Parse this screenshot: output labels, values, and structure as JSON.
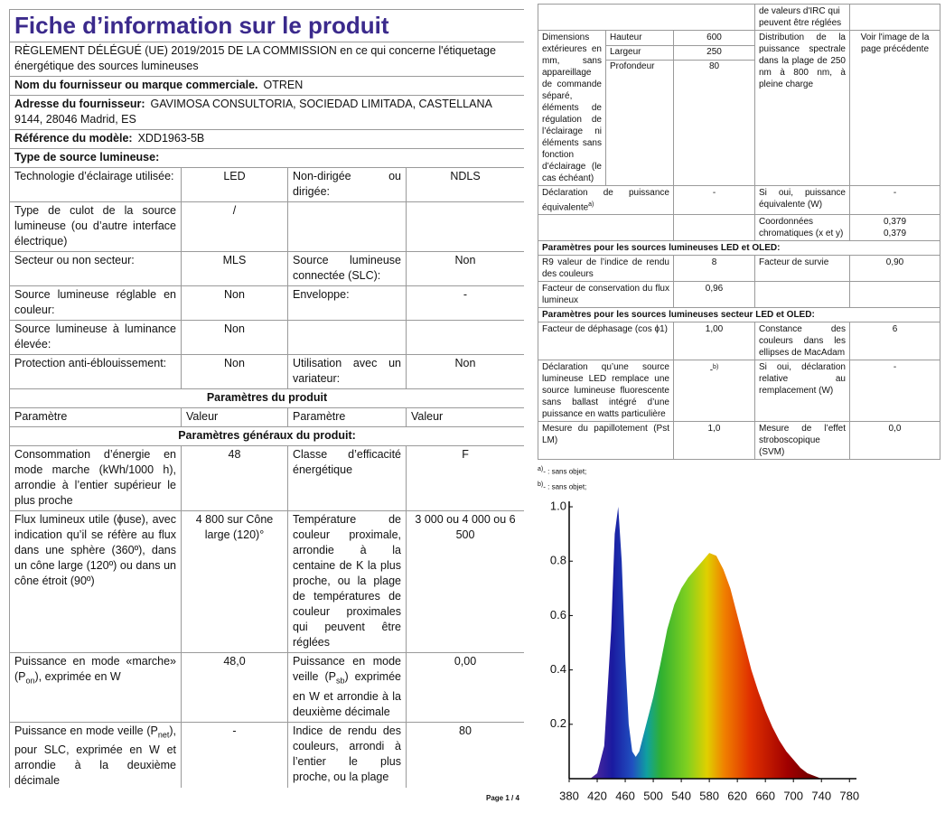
{
  "left": {
    "title": "Fiche d’information sur le produit",
    "regulation": "RÈGLEMENT DÉLÉGUÉ (UE) 2019/2015 DE LA COMMISSION en ce qui concerne l'étiquetage énergétique des sources lumineuses",
    "supplier": {
      "label": "Nom du fournisseur ou marque commerciale.",
      "value": "OTREN"
    },
    "address": {
      "label": "Adresse du fournisseur:",
      "value": "GAVIMOSA CONSULTORIA, SOCIEDAD LIMITADA, CASTELLANA 9144, 28046 Madrid, ES"
    },
    "model": {
      "label": "Référence du modèle:",
      "value": "XDD1963-5B"
    },
    "source_type_heading": "Type de source lumineuse:",
    "source_rows": [
      [
        "Technologie d’éclairage utilisée:",
        "LED",
        "Non-dirigée ou dirigée:",
        "NDLS"
      ],
      [
        "Type de culot de la source lumineuse (ou d’autre interface électrique)",
        "/",
        null,
        null
      ],
      [
        "Secteur ou non secteur:",
        "MLS",
        "Source lumineuse connectée (SLC):",
        "Non"
      ],
      [
        "Source lumineuse réglable en couleur:",
        "Non",
        "Enveloppe:",
        "-"
      ],
      [
        "Source lumineuse à luminance élevée:",
        "Non",
        null,
        null
      ],
      [
        "Protection anti-éblouissement:",
        "Non",
        "Utilisation avec un variateur:",
        "Non"
      ]
    ],
    "params_heading": "Paramètres du produit",
    "params_header": [
      "Paramètre",
      "Valeur",
      "Paramètre",
      "Valeur"
    ],
    "general_heading": "Paramètres généraux du produit:",
    "general_rows": [
      [
        "Consommation d’énergie en mode marche (kWh/1000 h), arrondie à l’entier supérieur le plus proche",
        "48",
        "Classe d’efficacité énergétique",
        "F"
      ],
      [
        "Flux lumineux utile (ϕuse), avec indication qu’il se réfère au flux dans une sphère (360º), dans un cône large (120º) ou dans un cône étroit (90º)",
        "4 800 sur Cône large (120)°",
        "Température de couleur proximale, arrondie à la centaine de K la plus proche, ou la plage de températures de couleur proximales qui peuvent être réglées",
        "3 000 ou 4 000 ou 6 500"
      ],
      [
        [
          "Puissance en mode «marche» (P",
          "on",
          "), exprimée en W"
        ],
        "48,0",
        [
          "Puissance en mode veille (P",
          "sb",
          ") exprimée en W et arrondie à la deuxième décimale"
        ],
        "0,00"
      ],
      [
        [
          "Puissance en mode veille (P",
          "net",
          "), pour SLC, exprimée en W et arrondie à la deuxième décimale"
        ],
        "-",
        "Indice de rendu des couleurs, arrondi à l’entier le plus proche, ou la plage",
        "80"
      ]
    ],
    "page": "Page 1 / 4"
  },
  "right": {
    "continued": "de valeurs d'IRC qui peuvent être réglées",
    "dimensions": {
      "label": "Dimensions extérieures en mm, sans appareillage de commande séparé, éléments de régulation de l’éclairage ni éléments sans fonction d’éclairage (le cas échéant)",
      "items": [
        {
          "name": "Hauteur",
          "value": "600"
        },
        {
          "name": "Largeur",
          "value": "250"
        },
        {
          "name": "Profondeur",
          "value": "80"
        }
      ],
      "param": "Distribution de la puissance spectrale dans la plage de 250 nm à 800 nm, à pleine charge",
      "value": "Voir l'image de la page précédente"
    },
    "rows": [
      [
        [
          "Déclaration de puissance équivalente",
          "a)"
        ],
        "-",
        "Si oui, puissance équivalente (W)",
        "-"
      ],
      [
        null,
        null,
        "Coordonnées chromatiques (x et y)",
        "0,379\n0,379"
      ]
    ],
    "led_heading": "Paramètres pour les sources lumineuses LED et OLED:",
    "led_rows": [
      [
        "R9 valeur de l’indice de rendu des couleurs",
        "8",
        "Facteur de survie",
        "0,90"
      ],
      [
        "Facteur de conservation du flux lumineux",
        "0,96",
        null,
        null
      ]
    ],
    "mains_heading": "Paramètres pour les sources lumineuses secteur LED et OLED:",
    "mains_rows": [
      [
        "Facteur de déphasage (cos ϕ1)",
        "1,00",
        "Constance des couleurs dans les ellipses de MacAdam",
        "6"
      ],
      [
        "Déclaration qu’une source lumineuse LED remplace une source lumineuse fluorescente sans ballast intégré d’une puissance en watts particulière",
        [
          "-",
          "b)"
        ],
        "Si oui, déclaration relative au remplacement (W)",
        "-"
      ],
      [
        "Mesure du papillotement (Pst LM)",
        "1,0",
        "Mesure de l’effet stroboscopique (SVM)",
        "0,0"
      ]
    ],
    "footnotes": [
      [
        "a)",
        "- : sans objet;"
      ],
      [
        "b)",
        "- : sans objet;"
      ]
    ]
  },
  "chart_data": {
    "type": "area",
    "x": [
      410,
      420,
      430,
      440,
      445,
      450,
      455,
      460,
      465,
      470,
      475,
      480,
      490,
      500,
      510,
      520,
      530,
      540,
      550,
      560,
      570,
      580,
      590,
      600,
      610,
      620,
      630,
      640,
      650,
      660,
      670,
      680,
      690,
      700,
      710,
      720,
      730,
      740
    ],
    "values": [
      0,
      0.02,
      0.12,
      0.55,
      0.9,
      1.0,
      0.8,
      0.45,
      0.2,
      0.1,
      0.08,
      0.1,
      0.2,
      0.3,
      0.42,
      0.55,
      0.64,
      0.7,
      0.74,
      0.77,
      0.8,
      0.83,
      0.82,
      0.77,
      0.7,
      0.6,
      0.5,
      0.4,
      0.32,
      0.25,
      0.19,
      0.14,
      0.1,
      0.07,
      0.04,
      0.02,
      0.01,
      0
    ],
    "xlim": [
      380,
      790
    ],
    "ylim": [
      0,
      1.02
    ],
    "xticks": [
      380,
      420,
      460,
      500,
      540,
      580,
      620,
      660,
      700,
      740,
      780
    ],
    "yticks": [
      0.2,
      0.4,
      0.6,
      0.8,
      {
        "value": 1,
        "label": "1.0"
      }
    ]
  }
}
